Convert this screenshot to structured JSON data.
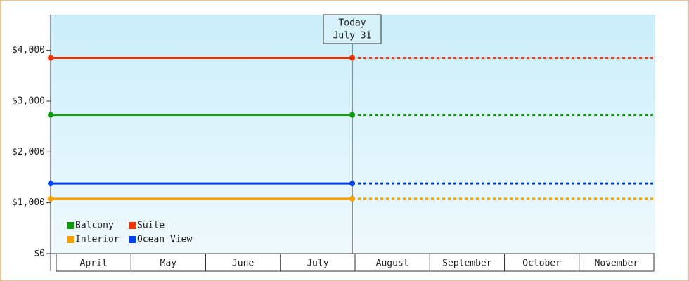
{
  "chart_data": {
    "type": "line",
    "categories": [
      "April",
      "May",
      "June",
      "July",
      "August",
      "September",
      "October",
      "November"
    ],
    "series": [
      {
        "name": "Balcony",
        "color": "#119911",
        "value": 2730
      },
      {
        "name": "Suite",
        "color": "#ee3300",
        "value": 3850
      },
      {
        "name": "Interior",
        "color": "#f5a000",
        "value": 1080
      },
      {
        "name": "Ocean View",
        "color": "#0044ee",
        "value": 1380
      }
    ],
    "annotation": {
      "label": "Today",
      "date": "July 31"
    },
    "ylim": [
      0,
      4700
    ],
    "yticks": [
      {
        "value": 0,
        "label": "$0"
      },
      {
        "value": 1000,
        "label": "$1,000"
      },
      {
        "value": 2000,
        "label": "$2,000"
      },
      {
        "value": 3000,
        "label": "$3,000"
      },
      {
        "value": 4000,
        "label": "$4,000"
      }
    ],
    "legend": "bottom-left"
  }
}
